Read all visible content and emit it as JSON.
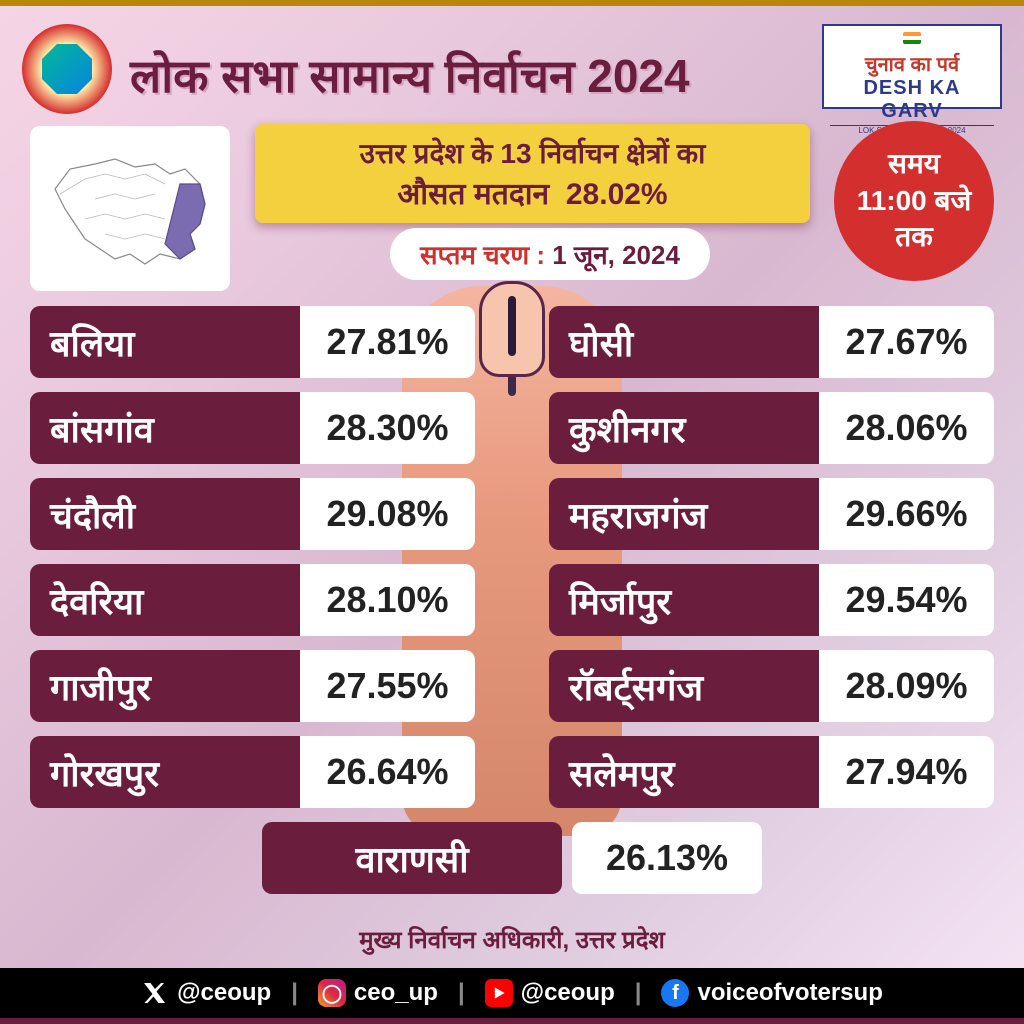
{
  "type": "infographic",
  "colors": {
    "primary_maroon": "#6b1d3e",
    "accent_yellow": "#f4d03f",
    "accent_red": "#d32f2f",
    "white": "#ffffff",
    "black": "#000000",
    "finger_skin": "#e89a7f",
    "map_highlight": "#7b6bb0",
    "bg_gradient_start": "#f5d5e5",
    "bg_gradient_end": "#f5e5f5"
  },
  "fonts": {
    "title_size": 46,
    "row_name_size": 36,
    "row_value_size": 36,
    "pill_size": 26,
    "yellow_box_size": 28
  },
  "title": "लोक सभा सामान्य निर्वाचन 2024",
  "campaign_logo": {
    "line1": "चुनाव का पर्व",
    "line2": "DESH KA GARV",
    "line3": "LOK SABHA ELECTION 2024"
  },
  "yellow_box": {
    "line1": "उत्तर प्रदेश के 13 निर्वाचन क्षेत्रों का",
    "line2_label": "औसत मतदान",
    "line2_value": "28.02%"
  },
  "phase": {
    "label": "सप्तम चरण :",
    "date": "1 जून, 2024"
  },
  "time_badge": {
    "line1": "समय",
    "line2": "11:00 बजे",
    "line3": "तक"
  },
  "constituencies": {
    "left": [
      {
        "name": "बलिया",
        "value": "27.81%"
      },
      {
        "name": "बांसगांव",
        "value": "28.30%"
      },
      {
        "name": "चंदौली",
        "value": "29.08%"
      },
      {
        "name": "देवरिया",
        "value": "28.10%"
      },
      {
        "name": "गाजीपुर",
        "value": "27.55%"
      },
      {
        "name": "गोरखपुर",
        "value": "26.64%"
      }
    ],
    "right": [
      {
        "name": "घोसी",
        "value": "27.67%"
      },
      {
        "name": "कुशीनगर",
        "value": "28.06%"
      },
      {
        "name": "महराजगंज",
        "value": "29.66%"
      },
      {
        "name": "मिर्जापुर",
        "value": "29.54%"
      },
      {
        "name": "रॉबर्ट्सगंज",
        "value": "28.09%"
      },
      {
        "name": "सलेमपुर",
        "value": "27.94%"
      }
    ],
    "center": {
      "name": "वाराणसी",
      "value": "26.13%"
    }
  },
  "footer_credit": "मुख्य निर्वाचन अधिकारी, उत्तर प्रदेश",
  "social": {
    "x": "@ceoup",
    "instagram": "ceo_up",
    "youtube": "@ceoup",
    "facebook": "voiceofvotersup"
  }
}
